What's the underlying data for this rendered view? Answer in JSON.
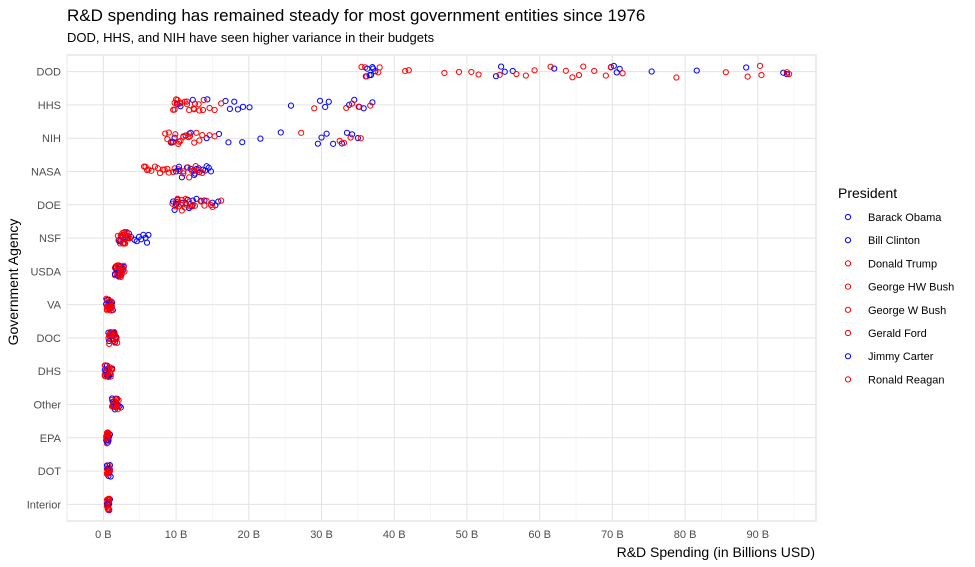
{
  "chart_data": {
    "type": "scatter",
    "title": "R&D spending has remained steady for most government entities since 1976",
    "subtitle": "DOD, HHS, and NIH have seen higher variance in their budgets",
    "xlabel": "R&D Spending (in Billions USD)",
    "ylabel": "Government Agency",
    "xlim": [
      -5,
      98
    ],
    "x_ticks": [
      0,
      10,
      20,
      30,
      40,
      50,
      60,
      70,
      80,
      90
    ],
    "x_tick_labels": [
      "0 B",
      "10 B",
      "20 B",
      "30 B",
      "40 B",
      "50 B",
      "60 B",
      "70 B",
      "80 B",
      "90 B"
    ],
    "categories": [
      "DOD",
      "HHS",
      "NIH",
      "NASA",
      "DOE",
      "NSF",
      "USDA",
      "VA",
      "DOC",
      "DHS",
      "Other",
      "EPA",
      "DOT",
      "Interior"
    ],
    "grid": true,
    "legend_position": "right",
    "legend_title": "President",
    "series": [
      {
        "name": "Barack Obama",
        "color": "#0000ff",
        "points": {
          "DOD": [
            75.4,
            70.6,
            69.8,
            62.0,
            56.3,
            55.2,
            54.7,
            54.0,
            93.5,
            81.6
          ],
          "HHS": [
            37.0,
            35.8,
            35.2,
            34.5,
            33.8,
            31.0,
            30.5,
            29.8,
            25.8
          ],
          "NIH": [
            35.0,
            34.2,
            33.5,
            32.8,
            31.6,
            30.7,
            30.0,
            29.5
          ],
          "NASA": [
            14.5,
            14.0,
            13.2,
            12.6,
            12.0,
            11.5,
            10.8,
            10.5
          ],
          "DOE": [
            15.8,
            15.4,
            15.0,
            12.3,
            11.8,
            11.3,
            10.8,
            10.2,
            9.8
          ],
          "NSF": [
            6.2,
            6.0,
            5.8,
            5.5,
            5.2,
            4.9,
            4.6,
            4.3
          ],
          "USDA": [
            2.8,
            2.6,
            2.5,
            2.4,
            2.3,
            2.2,
            2.1,
            2.0
          ],
          "VA": [
            1.3,
            1.2,
            1.1,
            1.1,
            1.0,
            0.9
          ],
          "DOC": [
            1.8,
            1.7,
            1.6,
            1.5,
            1.4,
            1.3
          ],
          "DHS": [
            1.2,
            1.0,
            0.8,
            0.7,
            0.6,
            0.5
          ],
          "Other": [
            2.4,
            2.2,
            2.0,
            1.9,
            1.7,
            1.6
          ],
          "EPA": [
            0.9,
            0.8,
            0.7,
            0.7,
            0.6
          ],
          "DOT": [
            1.0,
            0.9,
            0.9,
            0.8,
            0.8
          ],
          "Interior": [
            0.9,
            0.8,
            0.8,
            0.7,
            0.7
          ]
        }
      },
      {
        "name": "Bill Clinton",
        "color": "#0000ff",
        "points": {
          "DOD": [
            37.4,
            37.0,
            36.6,
            36.1,
            71.0,
            70.2,
            88.4,
            94.0
          ],
          "HHS": [
            20.1,
            19.2,
            18.5,
            18.0,
            17.4,
            16.8,
            14.3,
            12.3
          ],
          "NIH": [
            24.4,
            21.6,
            19.1,
            17.2,
            15.9,
            14.2,
            12.0,
            11.3
          ],
          "NASA": [
            14.8,
            14.2,
            13.7,
            13.1,
            12.8,
            12.5
          ],
          "DOE": [
            13.9,
            13.4,
            12.8,
            12.2,
            11.6
          ],
          "NSF": [
            3.8,
            3.5,
            3.3,
            3.0,
            2.9
          ],
          "USDA": [
            2.5,
            2.4,
            2.3,
            2.2,
            2.1
          ],
          "VA": [
            0.9,
            0.8,
            0.8,
            0.7,
            0.7
          ],
          "DOC": [
            1.6,
            1.5,
            1.4,
            1.3
          ],
          "DHS": [
            0.6,
            0.5,
            0.4,
            0.4
          ],
          "Other": [
            1.8,
            1.7,
            1.6,
            1.5
          ],
          "EPA": [
            0.7,
            0.7,
            0.6,
            0.6
          ],
          "DOT": [
            0.8,
            0.7,
            0.7,
            0.7
          ],
          "Interior": [
            0.7,
            0.7,
            0.6,
            0.6
          ]
        }
      },
      {
        "name": "Donald Trump",
        "color": "#ff0000",
        "points": {
          "DOD": [
            94.3,
            90.5,
            88.6,
            85.6,
            78.8,
            71.4,
            69.1,
            67.5,
            66.0,
            64.5
          ],
          "HHS": [
            36.7,
            35.1,
            34.2,
            33.4,
            29.0
          ],
          "NIH": [
            35.4,
            34.0,
            33.1,
            32.5,
            27.2
          ],
          "NASA": [
            13.1,
            12.4,
            11.8,
            11.0
          ],
          "DOE": [
            16.2,
            15.0,
            14.2,
            13.5
          ],
          "NSF": [
            3.6,
            3.4,
            3.2,
            3.0
          ],
          "USDA": [
            2.9,
            2.8,
            2.7,
            2.6
          ],
          "VA": [
            1.2,
            1.1,
            1.0,
            0.9
          ],
          "DOC": [
            1.9,
            1.8,
            1.7,
            1.6
          ],
          "DHS": [
            0.9,
            0.8,
            0.7
          ],
          "Other": [
            2.0,
            1.9,
            1.8
          ],
          "EPA": [
            0.7,
            0.6,
            0.6
          ],
          "DOT": [
            0.9,
            0.9,
            0.8
          ],
          "Interior": [
            0.8,
            0.7,
            0.7
          ]
        }
      },
      {
        "name": "George HW Bush",
        "color": "#ff0000",
        "points": {
          "DOD": [
            41.5,
            37.8,
            36.2,
            35.5
          ],
          "HHS": [
            12.6,
            11.5,
            10.5,
            10.0
          ],
          "NIH": [
            11.8,
            10.6,
            9.5,
            9.0
          ],
          "NASA": [
            9.6,
            8.8,
            8.2,
            7.5
          ],
          "DOE": [
            11.2,
            10.7,
            10.3,
            9.9
          ],
          "NSF": [
            2.9,
            2.7,
            2.5,
            2.3
          ],
          "USDA": [
            1.9,
            1.8,
            1.7,
            1.6
          ],
          "VA": [
            0.7,
            0.6,
            0.6,
            0.5
          ],
          "DOC": [
            1.1,
            1.0,
            0.9,
            0.9
          ],
          "DHS": [
            0.3,
            0.3,
            0.2
          ],
          "Other": [
            1.5,
            1.4,
            1.3
          ],
          "EPA": [
            0.6,
            0.5,
            0.5
          ],
          "DOT": [
            0.6,
            0.6,
            0.5
          ],
          "Interior": [
            0.6,
            0.6,
            0.5
          ]
        }
      },
      {
        "name": "George W Bush",
        "color": "#ff0000",
        "points": {
          "DOD": [
            59.3,
            58.1,
            51.6,
            50.6,
            48.9,
            46.9,
            42.0,
            61.5,
            69.8
          ],
          "HHS": [
            16.2,
            15.3,
            14.6,
            13.7,
            13.1,
            12.5,
            11.5,
            10.2,
            9.8
          ],
          "NIH": [
            15.3,
            14.6,
            13.6,
            12.8,
            11.9,
            11.0,
            10.3,
            9.6
          ],
          "NASA": [
            13.6,
            13.2,
            12.7,
            12.2,
            11.6,
            11.0,
            10.3,
            9.8
          ],
          "DOE": [
            14.8,
            13.9,
            13.4,
            12.6,
            12.0,
            11.4,
            10.8,
            10.2
          ],
          "NSF": [
            3.6,
            3.4,
            3.2,
            3.0,
            2.8,
            2.6,
            2.4
          ],
          "USDA": [
            2.7,
            2.5,
            2.4,
            2.3,
            2.2,
            2.1,
            2.0
          ],
          "VA": [
            1.1,
            1.0,
            0.9,
            0.9,
            0.8
          ],
          "DOC": [
            1.5,
            1.4,
            1.3,
            1.2,
            1.1
          ],
          "DHS": [
            1.2,
            1.1,
            1.0,
            0.9
          ],
          "Other": [
            2.1,
            1.9,
            1.8,
            1.7
          ],
          "EPA": [
            0.7,
            0.7,
            0.6,
            0.6
          ],
          "DOT": [
            0.8,
            0.8,
            0.7,
            0.7
          ],
          "Interior": [
            0.8,
            0.7,
            0.7,
            0.6
          ]
        }
      },
      {
        "name": "Gerald Ford",
        "color": "#ff0000",
        "points": {
          "DOD": [
            38.0,
            36.0
          ],
          "HHS": [
            9.8
          ],
          "NIH": [
            8.5
          ],
          "NASA": [
            6.2,
            5.8
          ],
          "DOE": [
            9.5
          ],
          "NSF": [
            2.0
          ],
          "USDA": [
            1.6
          ],
          "VA": [
            0.4
          ],
          "DOC": [
            0.7
          ],
          "DHS": [
            0.2
          ],
          "Other": [
            1.2
          ],
          "EPA": [
            0.4
          ],
          "DOT": [
            0.5
          ],
          "Interior": [
            0.5
          ]
        }
      },
      {
        "name": "Jimmy Carter",
        "color": "#0000ff",
        "points": {
          "DOD": [
            37.1,
            36.8,
            36.3
          ],
          "HHS": [
            10.6,
            10.2
          ],
          "NIH": [
            9.8,
            9.3
          ],
          "NASA": [
            10.4,
            10.0
          ],
          "DOE": [
            10.0,
            9.6
          ],
          "NSF": [
            2.3,
            2.1
          ],
          "USDA": [
            1.7,
            1.6
          ],
          "VA": [
            0.5,
            0.4
          ],
          "DOC": [
            0.8,
            0.7
          ],
          "DHS": [
            0.2
          ],
          "Other": [
            1.3,
            1.2
          ],
          "EPA": [
            0.5,
            0.4
          ],
          "DOT": [
            0.6,
            0.5
          ],
          "Interior": [
            0.6,
            0.5
          ]
        }
      },
      {
        "name": "Ronald Reagan",
        "color": "#ff0000",
        "points": {
          "DOD": [
            94.0,
            90.3,
            65.4,
            63.6,
            56.8,
            54.5
          ],
          "HHS": [
            13.8,
            13.2,
            12.4,
            11.8,
            11.2,
            10.6,
            10.1,
            9.6
          ],
          "NIH": [
            13.2,
            12.5,
            11.7,
            11.0,
            10.4,
            9.9,
            9.3,
            8.8
          ],
          "NASA": [
            9.0,
            8.4,
            7.8,
            7.1,
            6.6,
            6.0,
            5.6
          ],
          "DOE": [
            12.3,
            11.8,
            11.3,
            10.8,
            10.4,
            10.0
          ],
          "NSF": [
            3.0,
            2.8,
            2.6,
            2.4,
            2.2
          ],
          "USDA": [
            2.3,
            2.2,
            2.1,
            2.0,
            1.9
          ],
          "VA": [
            0.6,
            0.5,
            0.5,
            0.4
          ],
          "DOC": [
            1.0,
            0.9,
            0.8,
            0.8
          ],
          "DHS": [
            0.3,
            0.2
          ],
          "Other": [
            1.5,
            1.4,
            1.3,
            1.2
          ],
          "EPA": [
            0.6,
            0.5,
            0.5,
            0.4
          ],
          "DOT": [
            0.7,
            0.6,
            0.6,
            0.5
          ],
          "Interior": [
            0.7,
            0.6,
            0.6,
            0.5
          ]
        }
      }
    ]
  }
}
